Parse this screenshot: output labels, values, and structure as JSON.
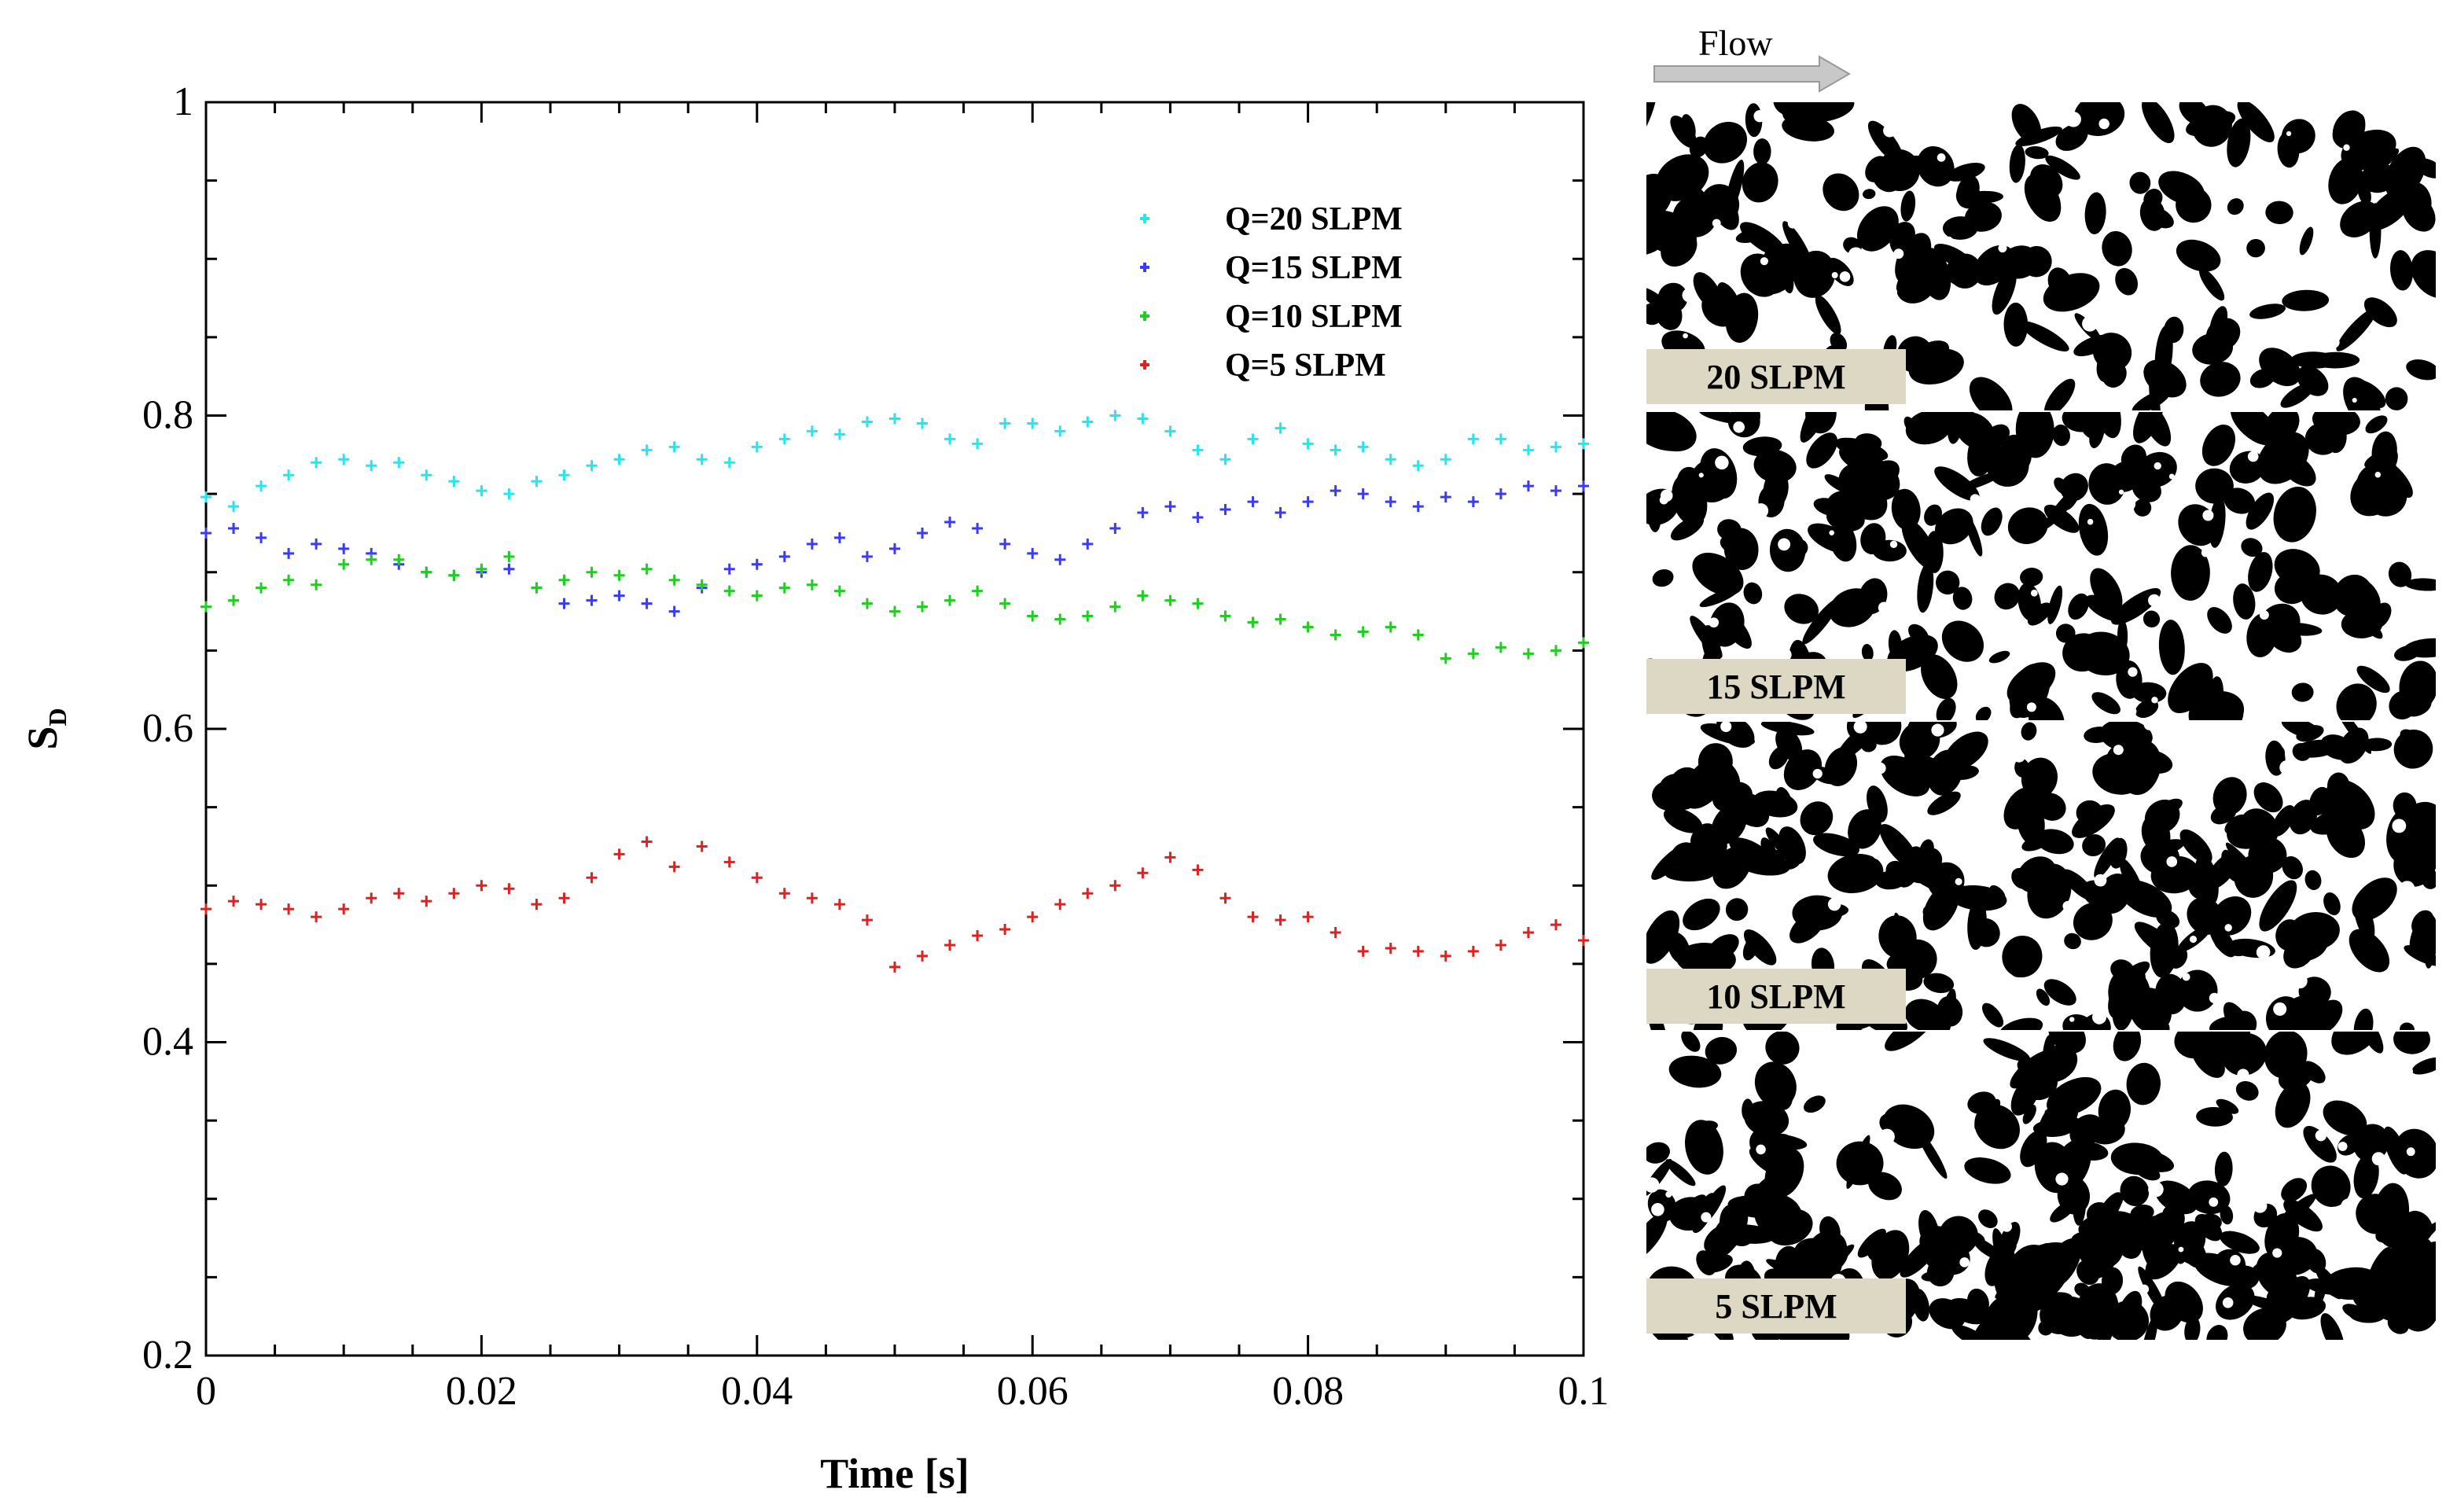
{
  "chart_data": {
    "type": "scatter",
    "xlabel": "Time [s]",
    "ylabel_main": "S",
    "ylabel_sub": "D",
    "xlim": [
      0,
      0.1
    ],
    "ylim": [
      0.2,
      1.0
    ],
    "x_ticks": [
      0,
      0.02,
      0.04,
      0.06,
      0.08,
      0.1
    ],
    "x_tick_labels": [
      "0",
      "0.02",
      "0.04",
      "0.06",
      "0.08",
      "0.1"
    ],
    "y_ticks": [
      0.2,
      0.4,
      0.6,
      0.8,
      1.0
    ],
    "y_tick_labels": [
      "0.2",
      "0.4",
      "0.6",
      "0.8",
      "1"
    ],
    "legend_position": "top-right",
    "marker": "+",
    "series": [
      {
        "name": "Q=20 SLPM",
        "color": "#22e6f0",
        "points": [
          [
            0,
            0.748
          ],
          [
            0.002,
            0.742
          ],
          [
            0.004,
            0.755
          ],
          [
            0.006,
            0.762
          ],
          [
            0.008,
            0.77
          ],
          [
            0.01,
            0.772
          ],
          [
            0.012,
            0.768
          ],
          [
            0.014,
            0.77
          ],
          [
            0.016,
            0.762
          ],
          [
            0.018,
            0.758
          ],
          [
            0.02,
            0.752
          ],
          [
            0.022,
            0.75
          ],
          [
            0.024,
            0.758
          ],
          [
            0.026,
            0.762
          ],
          [
            0.028,
            0.768
          ],
          [
            0.03,
            0.772
          ],
          [
            0.032,
            0.778
          ],
          [
            0.034,
            0.78
          ],
          [
            0.036,
            0.772
          ],
          [
            0.038,
            0.77
          ],
          [
            0.04,
            0.78
          ],
          [
            0.042,
            0.785
          ],
          [
            0.044,
            0.79
          ],
          [
            0.046,
            0.788
          ],
          [
            0.048,
            0.796
          ],
          [
            0.05,
            0.798
          ],
          [
            0.052,
            0.795
          ],
          [
            0.054,
            0.785
          ],
          [
            0.056,
            0.782
          ],
          [
            0.058,
            0.795
          ],
          [
            0.06,
            0.795
          ],
          [
            0.062,
            0.79
          ],
          [
            0.064,
            0.796
          ],
          [
            0.066,
            0.8
          ],
          [
            0.068,
            0.798
          ],
          [
            0.07,
            0.79
          ],
          [
            0.072,
            0.778
          ],
          [
            0.074,
            0.772
          ],
          [
            0.076,
            0.785
          ],
          [
            0.078,
            0.792
          ],
          [
            0.08,
            0.782
          ],
          [
            0.082,
            0.778
          ],
          [
            0.084,
            0.78
          ],
          [
            0.086,
            0.772
          ],
          [
            0.088,
            0.768
          ],
          [
            0.09,
            0.772
          ],
          [
            0.092,
            0.785
          ],
          [
            0.094,
            0.785
          ],
          [
            0.096,
            0.778
          ],
          [
            0.098,
            0.78
          ],
          [
            0.1,
            0.782
          ]
        ]
      },
      {
        "name": "Q=15 SLPM",
        "color": "#3b3bf0",
        "points": [
          [
            0,
            0.725
          ],
          [
            0.002,
            0.728
          ],
          [
            0.004,
            0.722
          ],
          [
            0.006,
            0.712
          ],
          [
            0.008,
            0.718
          ],
          [
            0.01,
            0.715
          ],
          [
            0.012,
            0.712
          ],
          [
            0.014,
            0.705
          ],
          [
            0.016,
            0.7
          ],
          [
            0.018,
            0.698
          ],
          [
            0.02,
            0.7
          ],
          [
            0.022,
            0.702
          ],
          [
            0.024,
            0.69
          ],
          [
            0.026,
            0.68
          ],
          [
            0.028,
            0.682
          ],
          [
            0.03,
            0.685
          ],
          [
            0.032,
            0.68
          ],
          [
            0.034,
            0.675
          ],
          [
            0.036,
            0.69
          ],
          [
            0.038,
            0.702
          ],
          [
            0.04,
            0.705
          ],
          [
            0.042,
            0.71
          ],
          [
            0.044,
            0.718
          ],
          [
            0.046,
            0.722
          ],
          [
            0.048,
            0.71
          ],
          [
            0.05,
            0.715
          ],
          [
            0.052,
            0.725
          ],
          [
            0.054,
            0.732
          ],
          [
            0.056,
            0.728
          ],
          [
            0.058,
            0.718
          ],
          [
            0.06,
            0.712
          ],
          [
            0.062,
            0.708
          ],
          [
            0.064,
            0.718
          ],
          [
            0.066,
            0.728
          ],
          [
            0.068,
            0.738
          ],
          [
            0.07,
            0.742
          ],
          [
            0.072,
            0.735
          ],
          [
            0.074,
            0.74
          ],
          [
            0.076,
            0.745
          ],
          [
            0.078,
            0.738
          ],
          [
            0.08,
            0.745
          ],
          [
            0.082,
            0.752
          ],
          [
            0.084,
            0.75
          ],
          [
            0.086,
            0.745
          ],
          [
            0.088,
            0.742
          ],
          [
            0.09,
            0.748
          ],
          [
            0.092,
            0.745
          ],
          [
            0.094,
            0.75
          ],
          [
            0.096,
            0.755
          ],
          [
            0.098,
            0.752
          ],
          [
            0.1,
            0.755
          ]
        ]
      },
      {
        "name": "Q=10 SLPM",
        "color": "#22cc22",
        "points": [
          [
            0,
            0.678
          ],
          [
            0.002,
            0.682
          ],
          [
            0.004,
            0.69
          ],
          [
            0.006,
            0.695
          ],
          [
            0.008,
            0.692
          ],
          [
            0.01,
            0.705
          ],
          [
            0.012,
            0.708
          ],
          [
            0.014,
            0.708
          ],
          [
            0.016,
            0.7
          ],
          [
            0.018,
            0.698
          ],
          [
            0.02,
            0.702
          ],
          [
            0.022,
            0.71
          ],
          [
            0.024,
            0.69
          ],
          [
            0.026,
            0.695
          ],
          [
            0.028,
            0.7
          ],
          [
            0.03,
            0.698
          ],
          [
            0.032,
            0.702
          ],
          [
            0.034,
            0.695
          ],
          [
            0.036,
            0.692
          ],
          [
            0.038,
            0.688
          ],
          [
            0.04,
            0.685
          ],
          [
            0.042,
            0.69
          ],
          [
            0.044,
            0.692
          ],
          [
            0.046,
            0.688
          ],
          [
            0.048,
            0.68
          ],
          [
            0.05,
            0.675
          ],
          [
            0.052,
            0.678
          ],
          [
            0.054,
            0.682
          ],
          [
            0.056,
            0.688
          ],
          [
            0.058,
            0.68
          ],
          [
            0.06,
            0.672
          ],
          [
            0.062,
            0.67
          ],
          [
            0.064,
            0.672
          ],
          [
            0.066,
            0.678
          ],
          [
            0.068,
            0.685
          ],
          [
            0.07,
            0.682
          ],
          [
            0.072,
            0.68
          ],
          [
            0.074,
            0.672
          ],
          [
            0.076,
            0.668
          ],
          [
            0.078,
            0.67
          ],
          [
            0.08,
            0.665
          ],
          [
            0.082,
            0.66
          ],
          [
            0.084,
            0.662
          ],
          [
            0.086,
            0.665
          ],
          [
            0.088,
            0.66
          ],
          [
            0.09,
            0.645
          ],
          [
            0.092,
            0.648
          ],
          [
            0.094,
            0.652
          ],
          [
            0.096,
            0.648
          ],
          [
            0.098,
            0.65
          ],
          [
            0.1,
            0.655
          ]
        ]
      },
      {
        "name": "Q=5 SLPM",
        "color": "#dd2222",
        "points": [
          [
            0,
            0.485
          ],
          [
            0.002,
            0.49
          ],
          [
            0.004,
            0.488
          ],
          [
            0.006,
            0.485
          ],
          [
            0.008,
            0.48
          ],
          [
            0.01,
            0.485
          ],
          [
            0.012,
            0.492
          ],
          [
            0.014,
            0.495
          ],
          [
            0.016,
            0.49
          ],
          [
            0.018,
            0.495
          ],
          [
            0.02,
            0.5
          ],
          [
            0.022,
            0.498
          ],
          [
            0.024,
            0.488
          ],
          [
            0.026,
            0.492
          ],
          [
            0.028,
            0.505
          ],
          [
            0.03,
            0.52
          ],
          [
            0.032,
            0.528
          ],
          [
            0.034,
            0.512
          ],
          [
            0.036,
            0.525
          ],
          [
            0.038,
            0.515
          ],
          [
            0.04,
            0.505
          ],
          [
            0.042,
            0.495
          ],
          [
            0.044,
            0.492
          ],
          [
            0.046,
            0.488
          ],
          [
            0.048,
            0.478
          ],
          [
            0.05,
            0.448
          ],
          [
            0.052,
            0.455
          ],
          [
            0.054,
            0.462
          ],
          [
            0.056,
            0.468
          ],
          [
            0.058,
            0.472
          ],
          [
            0.06,
            0.48
          ],
          [
            0.062,
            0.488
          ],
          [
            0.064,
            0.495
          ],
          [
            0.066,
            0.5
          ],
          [
            0.068,
            0.508
          ],
          [
            0.07,
            0.518
          ],
          [
            0.072,
            0.51
          ],
          [
            0.074,
            0.492
          ],
          [
            0.076,
            0.48
          ],
          [
            0.078,
            0.478
          ],
          [
            0.08,
            0.48
          ],
          [
            0.082,
            0.47
          ],
          [
            0.084,
            0.458
          ],
          [
            0.086,
            0.46
          ],
          [
            0.088,
            0.458
          ],
          [
            0.09,
            0.455
          ],
          [
            0.092,
            0.458
          ],
          [
            0.094,
            0.462
          ],
          [
            0.096,
            0.47
          ],
          [
            0.098,
            0.475
          ],
          [
            0.1,
            0.465
          ]
        ]
      }
    ]
  },
  "images": {
    "flow_label": "Flow",
    "panels": [
      {
        "label": "20 SLPM",
        "seed": 20
      },
      {
        "label": "15 SLPM",
        "seed": 15
      },
      {
        "label": "10 SLPM",
        "seed": 10
      },
      {
        "label": "5 SLPM",
        "seed": 5
      }
    ],
    "label_bg_color": "#ddd8c4",
    "arrow_color": "#c8c8c8"
  }
}
